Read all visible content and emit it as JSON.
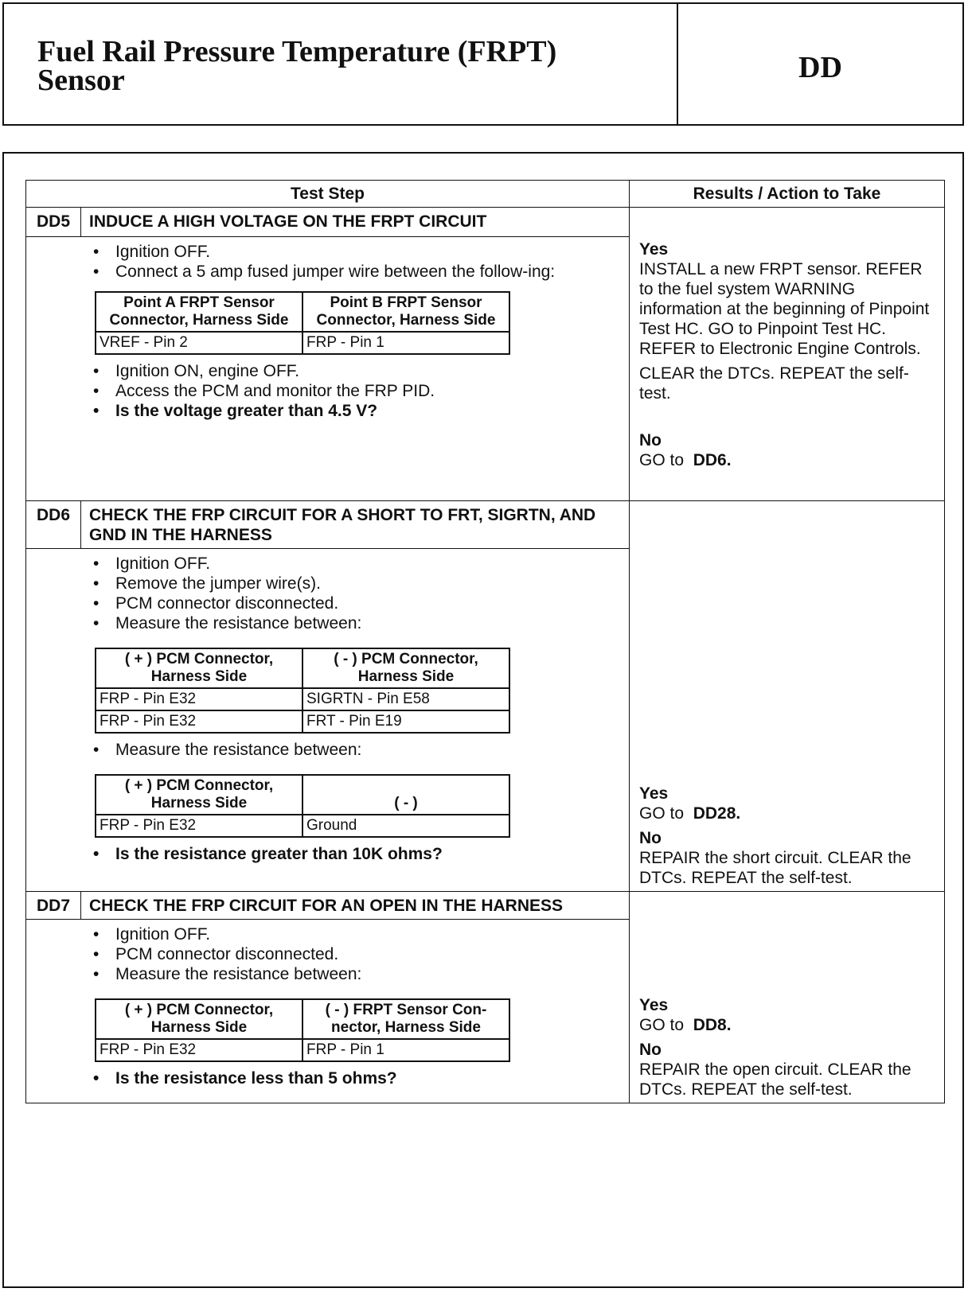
{
  "header": {
    "title_line1": "Fuel Rail Pressure Temperature (FRPT)",
    "title_line2": "Sensor",
    "code": "DD"
  },
  "table": {
    "col_test_step": "Test Step",
    "col_results": "Results / Action to Take"
  },
  "steps": [
    {
      "id": "DD5",
      "title": "INDUCE A HIGH VOLTAGE ON THE FRPT CIRCUIT",
      "bullets1": [
        "Ignition OFF.",
        "Connect a 5 amp fused jumper wire between the follow-ing:"
      ],
      "table": {
        "headers": [
          "Point A FRPT Sensor Connector, Harness Side",
          "Point B FRPT Sensor Connector, Harness Side"
        ],
        "rows": [
          [
            "VREF - Pin 2",
            "FRP - Pin 1"
          ]
        ]
      },
      "bullets2": [
        "Ignition ON, engine OFF.",
        "Access the PCM and monitor the FRP PID."
      ],
      "question": "Is the voltage greater than 4.5 V?",
      "yes_label": "Yes",
      "yes_text": "INSTALL a new FRPT sensor. REFER to the fuel system WARNING information at the beginning of Pinpoint Test HC. GO to Pinpoint Test HC. REFER to Electronic Engine Controls.",
      "yes_text2": "CLEAR the DTCs. REPEAT the self-test.",
      "no_label": "No",
      "no_prefix": "GO to",
      "no_target": "DD6."
    },
    {
      "id": "DD6",
      "title": "CHECK THE FRP CIRCUIT FOR A SHORT TO FRT, SIGRTN, AND GND IN THE HARNESS",
      "bullets1": [
        "Ignition OFF.",
        "Remove the jumper wire(s).",
        "PCM connector disconnected.",
        "Measure the resistance between:"
      ],
      "table": {
        "headers": [
          "( + ) PCM Connector, Harness Side",
          "( - ) PCM Connector, Harness Side"
        ],
        "rows": [
          [
            "FRP - Pin E32",
            "SIGRTN - Pin  E58"
          ],
          [
            "FRP - Pin E32",
            "FRT - Pin E19"
          ]
        ]
      },
      "bullets2": [
        "Measure the resistance between:"
      ],
      "table2": {
        "headers": [
          "( + ) PCM Connector, Harness Side",
          "( - )"
        ],
        "rows": [
          [
            "FRP - Pin E32",
            "Ground"
          ]
        ]
      },
      "question": "Is the resistance greater than 10K ohms?",
      "yes_label": "Yes",
      "yes_prefix": "GO to",
      "yes_target": "DD28.",
      "no_label": "No",
      "no_text": "REPAIR the short circuit. CLEAR the DTCs. REPEAT the self-test."
    },
    {
      "id": "DD7",
      "title": "CHECK THE FRP CIRCUIT FOR AN OPEN IN THE HARNESS",
      "bullets1": [
        "Ignition OFF.",
        "PCM connector disconnected.",
        "Measure the resistance between:"
      ],
      "table": {
        "headers": [
          "( + ) PCM Connector, Harness Side",
          "( - ) FRPT Sensor Con-nector, Harness Side"
        ],
        "rows": [
          [
            "FRP - Pin E32",
            "FRP - Pin 1"
          ]
        ]
      },
      "question": "Is the resistance less than 5 ohms?",
      "yes_label": "Yes",
      "yes_prefix": "GO to",
      "yes_target": "DD8.",
      "no_label": "No",
      "no_text": "REPAIR the open circuit. CLEAR the DTCs. REPEAT the self-test."
    }
  ]
}
